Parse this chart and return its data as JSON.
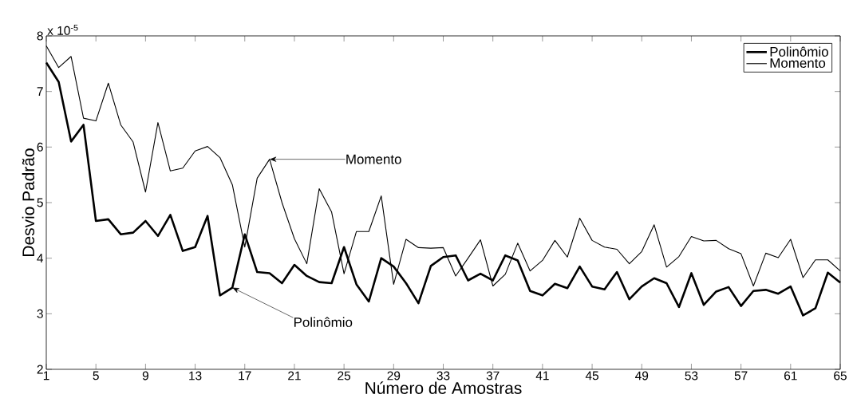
{
  "chart_data": {
    "type": "line",
    "xlabel": "Número de Amostras",
    "ylabel": "Desvio Padrão",
    "x": [
      1,
      2,
      3,
      4,
      5,
      6,
      7,
      8,
      9,
      10,
      11,
      12,
      13,
      14,
      15,
      16,
      17,
      18,
      19,
      20,
      21,
      22,
      23,
      24,
      25,
      26,
      27,
      28,
      29,
      30,
      31,
      32,
      33,
      34,
      35,
      36,
      37,
      38,
      39,
      40,
      41,
      42,
      43,
      44,
      45,
      46,
      47,
      48,
      49,
      50,
      51,
      52,
      53,
      54,
      55,
      56,
      57,
      58,
      59,
      60,
      61,
      62,
      63,
      64,
      65
    ],
    "series": [
      {
        "name": "Polinômio",
        "color": "#000000",
        "values": [
          7.52,
          7.17,
          6.1,
          6.4,
          4.67,
          4.7,
          4.43,
          4.46,
          4.67,
          4.4,
          4.78,
          4.13,
          4.2,
          4.76,
          3.33,
          3.47,
          4.43,
          3.75,
          3.73,
          3.55,
          3.88,
          3.68,
          3.57,
          3.55,
          4.2,
          3.53,
          3.22,
          4.0,
          3.85,
          3.55,
          3.19,
          3.86,
          4.02,
          4.05,
          3.6,
          3.72,
          3.6,
          4.05,
          3.96,
          3.41,
          3.33,
          3.54,
          3.46,
          3.85,
          3.49,
          3.44,
          3.75,
          3.26,
          3.49,
          3.64,
          3.55,
          3.12,
          3.73,
          3.16,
          3.4,
          3.48,
          3.14,
          3.41,
          3.43,
          3.36,
          3.49,
          2.97,
          3.1,
          3.74,
          3.56
        ]
      },
      {
        "name": "Momento",
        "color": "#000000",
        "values": [
          7.82,
          7.43,
          7.63,
          6.52,
          6.47,
          7.15,
          6.4,
          6.09,
          5.19,
          6.44,
          5.57,
          5.62,
          5.93,
          6.01,
          5.81,
          5.32,
          4.2,
          5.44,
          5.78,
          5.0,
          4.35,
          3.9,
          5.25,
          4.83,
          3.72,
          4.48,
          4.48,
          5.12,
          3.53,
          4.34,
          4.19,
          4.18,
          4.19,
          3.68,
          4.0,
          4.33,
          3.5,
          3.71,
          4.27,
          3.77,
          3.96,
          4.32,
          4.02,
          4.72,
          4.32,
          4.2,
          4.16,
          3.9,
          4.12,
          4.6,
          3.84,
          4.03,
          4.39,
          4.31,
          4.32,
          4.17,
          4.08,
          3.5,
          4.09,
          4.01,
          4.34,
          3.65,
          3.97,
          3.97,
          3.77
        ]
      }
    ],
    "xlim": [
      1,
      65
    ],
    "xticks": [
      1,
      5,
      9,
      13,
      17,
      21,
      25,
      29,
      33,
      37,
      41,
      45,
      49,
      53,
      57,
      61,
      65
    ],
    "ylim": [
      2,
      8
    ],
    "yticks": [
      2,
      3,
      4,
      5,
      6,
      7,
      8
    ],
    "annotations": [
      "x 10$^{-5}$",
      {
        "text": "Momento",
        "x": 19,
        "y": 5.78
      },
      {
        "text": "Polinômio",
        "x": 16,
        "y": 3.47
      }
    ],
    "legend": "top right",
    "grid": false,
    "marker": "none",
    "line_style": "solid"
  }
}
